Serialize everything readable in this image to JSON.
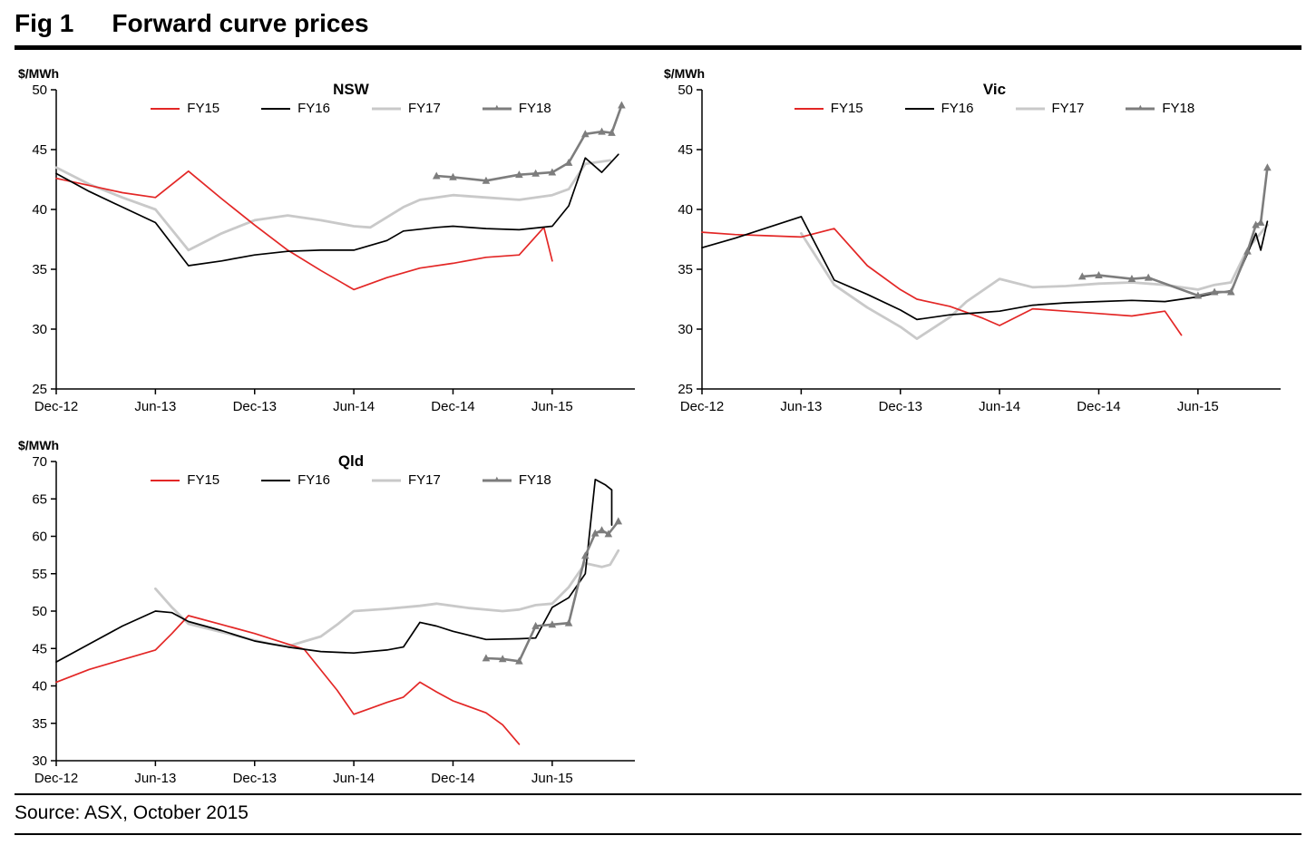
{
  "figure": {
    "label": "Fig 1",
    "title": "Forward curve prices",
    "source": "Source: ASX, October 2015"
  },
  "colors": {
    "fy15": "#e32726",
    "fy16": "#000000",
    "fy17": "#c9c9c9",
    "fy18": "#7d7d7d"
  },
  "chart_data": [
    {
      "type": "line",
      "title": "NSW",
      "ylabel": "$/MWh",
      "ylim": [
        25,
        50
      ],
      "ytick_step": 5,
      "xlim": [
        0,
        35
      ],
      "grid": false,
      "legend_position": "top-center",
      "xticks": [
        {
          "x": 0,
          "label": "Dec-12"
        },
        {
          "x": 6,
          "label": "Jun-13"
        },
        {
          "x": 12,
          "label": "Dec-13"
        },
        {
          "x": 18,
          "label": "Jun-14"
        },
        {
          "x": 24,
          "label": "Dec-14"
        },
        {
          "x": 30,
          "label": "Jun-15"
        }
      ],
      "series": [
        {
          "name": "FY15",
          "color": "#e32726",
          "line_width": 1.7,
          "marker": "none",
          "points": [
            [
              0,
              42.6
            ],
            [
              2,
              42.0
            ],
            [
              4,
              41.4
            ],
            [
              6,
              41.0
            ],
            [
              8,
              43.2
            ],
            [
              10,
              40.9
            ],
            [
              12,
              38.7
            ],
            [
              14,
              36.6
            ],
            [
              16,
              34.9
            ],
            [
              18,
              33.3
            ],
            [
              20,
              34.3
            ],
            [
              22,
              35.1
            ],
            [
              24,
              35.5
            ],
            [
              26,
              36.0
            ],
            [
              28,
              36.2
            ],
            [
              29.5,
              38.5
            ],
            [
              30,
              35.7
            ]
          ]
        },
        {
          "name": "FY16",
          "color": "#000000",
          "line_width": 1.7,
          "marker": "none",
          "points": [
            [
              0,
              43.0
            ],
            [
              2,
              41.5
            ],
            [
              4,
              40.2
            ],
            [
              6,
              38.9
            ],
            [
              8,
              35.3
            ],
            [
              10,
              35.7
            ],
            [
              12,
              36.2
            ],
            [
              14,
              36.5
            ],
            [
              16,
              36.6
            ],
            [
              18,
              36.6
            ],
            [
              20,
              37.4
            ],
            [
              21,
              38.2
            ],
            [
              23,
              38.5
            ],
            [
              24,
              38.6
            ],
            [
              26,
              38.4
            ],
            [
              28,
              38.3
            ],
            [
              30,
              38.6
            ],
            [
              31,
              40.3
            ],
            [
              32,
              44.3
            ],
            [
              33,
              43.1
            ],
            [
              34,
              44.6
            ]
          ]
        },
        {
          "name": "FY17",
          "color": "#c9c9c9",
          "line_width": 2.8,
          "marker": "none",
          "points": [
            [
              0,
              43.5
            ],
            [
              2,
              42.1
            ],
            [
              4,
              41.0
            ],
            [
              6,
              40.0
            ],
            [
              8,
              36.6
            ],
            [
              10,
              38.0
            ],
            [
              12,
              39.1
            ],
            [
              14,
              39.5
            ],
            [
              16,
              39.1
            ],
            [
              18,
              38.6
            ],
            [
              19,
              38.5
            ],
            [
              21,
              40.2
            ],
            [
              22,
              40.8
            ],
            [
              24,
              41.2
            ],
            [
              26,
              41.0
            ],
            [
              28,
              40.8
            ],
            [
              30,
              41.2
            ],
            [
              31,
              41.7
            ],
            [
              32,
              43.8
            ],
            [
              33.5,
              44.1
            ]
          ]
        },
        {
          "name": "FY18",
          "color": "#7d7d7d",
          "line_width": 2.6,
          "marker": "triangle",
          "points": [
            [
              23,
              42.8
            ],
            [
              24,
              42.7
            ],
            [
              26,
              42.4
            ],
            [
              28,
              42.9
            ],
            [
              29,
              43.0
            ],
            [
              30,
              43.1
            ],
            [
              31,
              43.9
            ],
            [
              32,
              46.3
            ],
            [
              33,
              46.5
            ],
            [
              33.6,
              46.4
            ],
            [
              34.2,
              48.7
            ]
          ]
        }
      ]
    },
    {
      "type": "line",
      "title": "Vic",
      "ylabel": "$/MWh",
      "ylim": [
        25,
        50
      ],
      "ytick_step": 5,
      "xlim": [
        0,
        35
      ],
      "grid": false,
      "legend_position": "top-center",
      "xticks": [
        {
          "x": 0,
          "label": "Dec-12"
        },
        {
          "x": 6,
          "label": "Jun-13"
        },
        {
          "x": 12,
          "label": "Dec-13"
        },
        {
          "x": 18,
          "label": "Jun-14"
        },
        {
          "x": 24,
          "label": "Dec-14"
        },
        {
          "x": 30,
          "label": "Jun-15"
        }
      ],
      "series": [
        {
          "name": "FY15",
          "color": "#e32726",
          "line_width": 1.7,
          "marker": "none",
          "points": [
            [
              0,
              38.1
            ],
            [
              2,
              37.9
            ],
            [
              4,
              37.8
            ],
            [
              6,
              37.7
            ],
            [
              8,
              38.4
            ],
            [
              10,
              35.3
            ],
            [
              12,
              33.3
            ],
            [
              13,
              32.5
            ],
            [
              15,
              31.9
            ],
            [
              17,
              30.9
            ],
            [
              18,
              30.3
            ],
            [
              20,
              31.7
            ],
            [
              22,
              31.5
            ],
            [
              24,
              31.3
            ],
            [
              26,
              31.1
            ],
            [
              28,
              31.5
            ],
            [
              29,
              29.5
            ]
          ]
        },
        {
          "name": "FY16",
          "color": "#000000",
          "line_width": 1.7,
          "marker": "none",
          "points": [
            [
              0,
              36.8
            ],
            [
              2,
              37.6
            ],
            [
              4,
              38.5
            ],
            [
              6,
              39.4
            ],
            [
              8,
              34.1
            ],
            [
              10,
              32.9
            ],
            [
              12,
              31.6
            ],
            [
              13,
              30.8
            ],
            [
              15,
              31.2
            ],
            [
              17,
              31.4
            ],
            [
              18,
              31.5
            ],
            [
              20,
              32.0
            ],
            [
              22,
              32.2
            ],
            [
              24,
              32.3
            ],
            [
              26,
              32.4
            ],
            [
              28,
              32.3
            ],
            [
              30,
              32.7
            ],
            [
              31,
              33.0
            ],
            [
              32,
              33.2
            ],
            [
              33,
              36.3
            ],
            [
              33.5,
              38.0
            ],
            [
              33.8,
              36.6
            ],
            [
              34.2,
              39.0
            ]
          ]
        },
        {
          "name": "FY17",
          "color": "#c9c9c9",
          "line_width": 2.8,
          "marker": "none",
          "points": [
            [
              6,
              38.0
            ],
            [
              8,
              33.7
            ],
            [
              10,
              31.8
            ],
            [
              12,
              30.2
            ],
            [
              13,
              29.2
            ],
            [
              15,
              31.0
            ],
            [
              16,
              32.3
            ],
            [
              18,
              34.2
            ],
            [
              20,
              33.5
            ],
            [
              22,
              33.6
            ],
            [
              24,
              33.8
            ],
            [
              26,
              33.9
            ],
            [
              28,
              33.7
            ],
            [
              30,
              33.3
            ],
            [
              31,
              33.7
            ],
            [
              32,
              33.9
            ],
            [
              33,
              36.7
            ],
            [
              34.2,
              38.7
            ]
          ]
        },
        {
          "name": "FY18",
          "color": "#7d7d7d",
          "line_width": 2.6,
          "marker": "triangle",
          "points": [
            [
              23,
              34.4
            ],
            [
              24,
              34.5
            ],
            [
              26,
              34.2
            ],
            [
              27,
              34.3
            ],
            [
              30,
              32.8
            ],
            [
              31,
              33.1
            ],
            [
              32,
              33.1
            ],
            [
              33,
              36.5
            ],
            [
              33.5,
              38.7
            ],
            [
              33.8,
              38.9
            ],
            [
              34.2,
              43.5
            ]
          ]
        }
      ]
    },
    {
      "type": "line",
      "title": "Qld",
      "ylabel": "$/MWh",
      "ylim": [
        30,
        70
      ],
      "ytick_step": 5,
      "xlim": [
        0,
        35
      ],
      "grid": false,
      "legend_position": "top-center",
      "xticks": [
        {
          "x": 0,
          "label": "Dec-12"
        },
        {
          "x": 6,
          "label": "Jun-13"
        },
        {
          "x": 12,
          "label": "Dec-13"
        },
        {
          "x": 18,
          "label": "Jun-14"
        },
        {
          "x": 24,
          "label": "Dec-14"
        },
        {
          "x": 30,
          "label": "Jun-15"
        }
      ],
      "series": [
        {
          "name": "FY15",
          "color": "#e32726",
          "line_width": 1.7,
          "marker": "none",
          "points": [
            [
              0,
              40.5
            ],
            [
              2,
              42.2
            ],
            [
              4,
              43.5
            ],
            [
              6,
              44.8
            ],
            [
              7,
              47.0
            ],
            [
              8,
              49.4
            ],
            [
              10,
              48.2
            ],
            [
              12,
              47.0
            ],
            [
              14,
              45.6
            ],
            [
              15,
              44.9
            ],
            [
              17,
              39.4
            ],
            [
              18,
              36.2
            ],
            [
              19,
              37.0
            ],
            [
              20,
              37.8
            ],
            [
              21,
              38.5
            ],
            [
              22,
              40.5
            ],
            [
              23,
              39.2
            ],
            [
              24,
              38.0
            ],
            [
              26,
              36.4
            ],
            [
              27,
              34.8
            ],
            [
              28,
              32.2
            ]
          ]
        },
        {
          "name": "FY16",
          "color": "#000000",
          "line_width": 1.7,
          "marker": "none",
          "points": [
            [
              0,
              43.2
            ],
            [
              2,
              45.6
            ],
            [
              4,
              48.0
            ],
            [
              6,
              50.0
            ],
            [
              7,
              49.8
            ],
            [
              8,
              48.6
            ],
            [
              10,
              47.4
            ],
            [
              12,
              46.0
            ],
            [
              14,
              45.2
            ],
            [
              16,
              44.6
            ],
            [
              18,
              44.4
            ],
            [
              20,
              44.8
            ],
            [
              21,
              45.2
            ],
            [
              22,
              48.5
            ],
            [
              23,
              48.0
            ],
            [
              24,
              47.3
            ],
            [
              26,
              46.2
            ],
            [
              28,
              46.3
            ],
            [
              29,
              46.4
            ],
            [
              30,
              50.5
            ],
            [
              31,
              51.8
            ],
            [
              32,
              55.0
            ],
            [
              32.6,
              67.6
            ],
            [
              33.2,
              66.9
            ],
            [
              33.6,
              66.2
            ],
            [
              33.6,
              61.5
            ]
          ]
        },
        {
          "name": "FY17",
          "color": "#c9c9c9",
          "line_width": 2.8,
          "marker": "none",
          "points": [
            [
              6,
              53.0
            ],
            [
              7,
              50.5
            ],
            [
              8,
              48.3
            ],
            [
              10,
              47.2
            ],
            [
              12,
              46.1
            ],
            [
              13,
              45.6
            ],
            [
              14,
              45.3
            ],
            [
              16,
              46.6
            ],
            [
              17,
              48.2
            ],
            [
              18,
              50.0
            ],
            [
              20,
              50.3
            ],
            [
              22,
              50.7
            ],
            [
              23,
              51.0
            ],
            [
              25,
              50.4
            ],
            [
              27,
              50.0
            ],
            [
              28,
              50.2
            ],
            [
              29,
              50.8
            ],
            [
              30,
              51.0
            ],
            [
              31,
              53.2
            ],
            [
              32,
              56.4
            ],
            [
              33,
              55.9
            ],
            [
              33.5,
              56.2
            ],
            [
              34,
              58.1
            ]
          ]
        },
        {
          "name": "FY18",
          "color": "#7d7d7d",
          "line_width": 2.6,
          "marker": "triangle",
          "points": [
            [
              26,
              43.7
            ],
            [
              27,
              43.6
            ],
            [
              28,
              43.3
            ],
            [
              29,
              48.0
            ],
            [
              30,
              48.2
            ],
            [
              31,
              48.4
            ],
            [
              32,
              57.4
            ],
            [
              32.6,
              60.4
            ],
            [
              33,
              60.8
            ],
            [
              33.4,
              60.3
            ],
            [
              34,
              62.0
            ]
          ]
        }
      ]
    }
  ]
}
